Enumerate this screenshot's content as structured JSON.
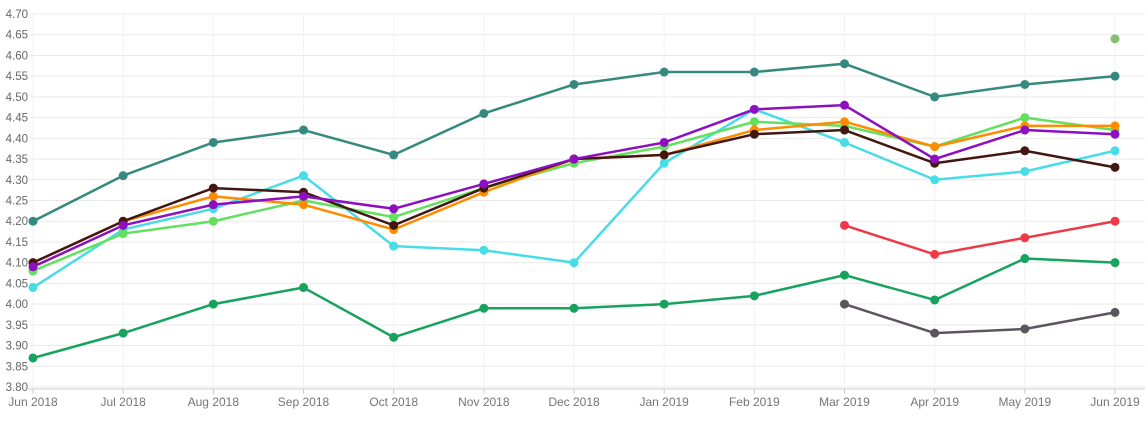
{
  "chart_data": {
    "type": "line",
    "title": "",
    "xlabel": "",
    "ylabel": "",
    "categories": [
      "Jun 2018",
      "Jul 2018",
      "Aug 2018",
      "Sep 2018",
      "Oct 2018",
      "Nov 2018",
      "Dec 2018",
      "Jan 2019",
      "Feb 2019",
      "Mar 2019",
      "Apr 2019",
      "May 2019",
      "Jun 2019"
    ],
    "ylim": [
      3.8,
      4.7
    ],
    "y_tick_step": 0.05,
    "y_tick_decimals": 2,
    "grid": true,
    "legend_position": "none",
    "series": [
      {
        "name": "teal",
        "color": "#35897e",
        "values": [
          4.2,
          4.31,
          4.39,
          4.42,
          4.36,
          4.46,
          4.53,
          4.56,
          4.56,
          4.58,
          4.5,
          4.53,
          4.55
        ]
      },
      {
        "name": "cyan",
        "color": "#48dce6",
        "values": [
          4.04,
          4.18,
          4.23,
          4.31,
          4.14,
          4.13,
          4.1,
          4.34,
          4.47,
          4.39,
          4.3,
          4.32,
          4.37
        ]
      },
      {
        "name": "light-green",
        "color": "#62e05e",
        "values": [
          4.08,
          4.17,
          4.2,
          4.25,
          4.21,
          4.28,
          4.34,
          4.38,
          4.44,
          4.43,
          4.38,
          4.45,
          4.42
        ]
      },
      {
        "name": "orange",
        "color": "#ff8c00",
        "values": [
          4.1,
          4.2,
          4.26,
          4.24,
          4.18,
          4.27,
          4.35,
          4.36,
          4.42,
          4.44,
          4.38,
          4.43,
          4.43
        ]
      },
      {
        "name": "dark-brown",
        "color": "#421712",
        "values": [
          4.1,
          4.2,
          4.28,
          4.27,
          4.19,
          4.28,
          4.35,
          4.36,
          4.41,
          4.42,
          4.34,
          4.37,
          4.33
        ]
      },
      {
        "name": "purple",
        "color": "#8d0fbf",
        "values": [
          4.09,
          4.19,
          4.24,
          4.26,
          4.23,
          4.29,
          4.35,
          4.39,
          4.47,
          4.48,
          4.35,
          4.42,
          4.41
        ]
      },
      {
        "name": "emerald",
        "color": "#17a35e",
        "values": [
          3.87,
          3.93,
          4.0,
          4.04,
          3.92,
          3.99,
          3.99,
          4.0,
          4.02,
          4.07,
          4.01,
          4.11,
          4.1
        ]
      },
      {
        "name": "red",
        "color": "#ee3a48",
        "values": [
          null,
          null,
          null,
          null,
          null,
          null,
          null,
          null,
          null,
          4.19,
          4.12,
          4.16,
          4.2
        ]
      },
      {
        "name": "gray",
        "color": "#5c555e",
        "values": [
          null,
          null,
          null,
          null,
          null,
          null,
          null,
          null,
          null,
          4.0,
          3.93,
          3.94,
          3.98
        ]
      },
      {
        "name": "light-olive",
        "color": "#84bf70",
        "values": [
          null,
          null,
          null,
          null,
          null,
          null,
          null,
          null,
          null,
          null,
          null,
          null,
          4.64
        ]
      }
    ],
    "style": {
      "grid_color_horizontal": "#e9e9e9",
      "grid_color_vertical": "#f2f2f2",
      "axis_line_color": "#cccccc",
      "tick_color": "#cccccc",
      "y_label_color": "#666666",
      "x_label_color": "#757575",
      "background": "#ffffff"
    }
  }
}
